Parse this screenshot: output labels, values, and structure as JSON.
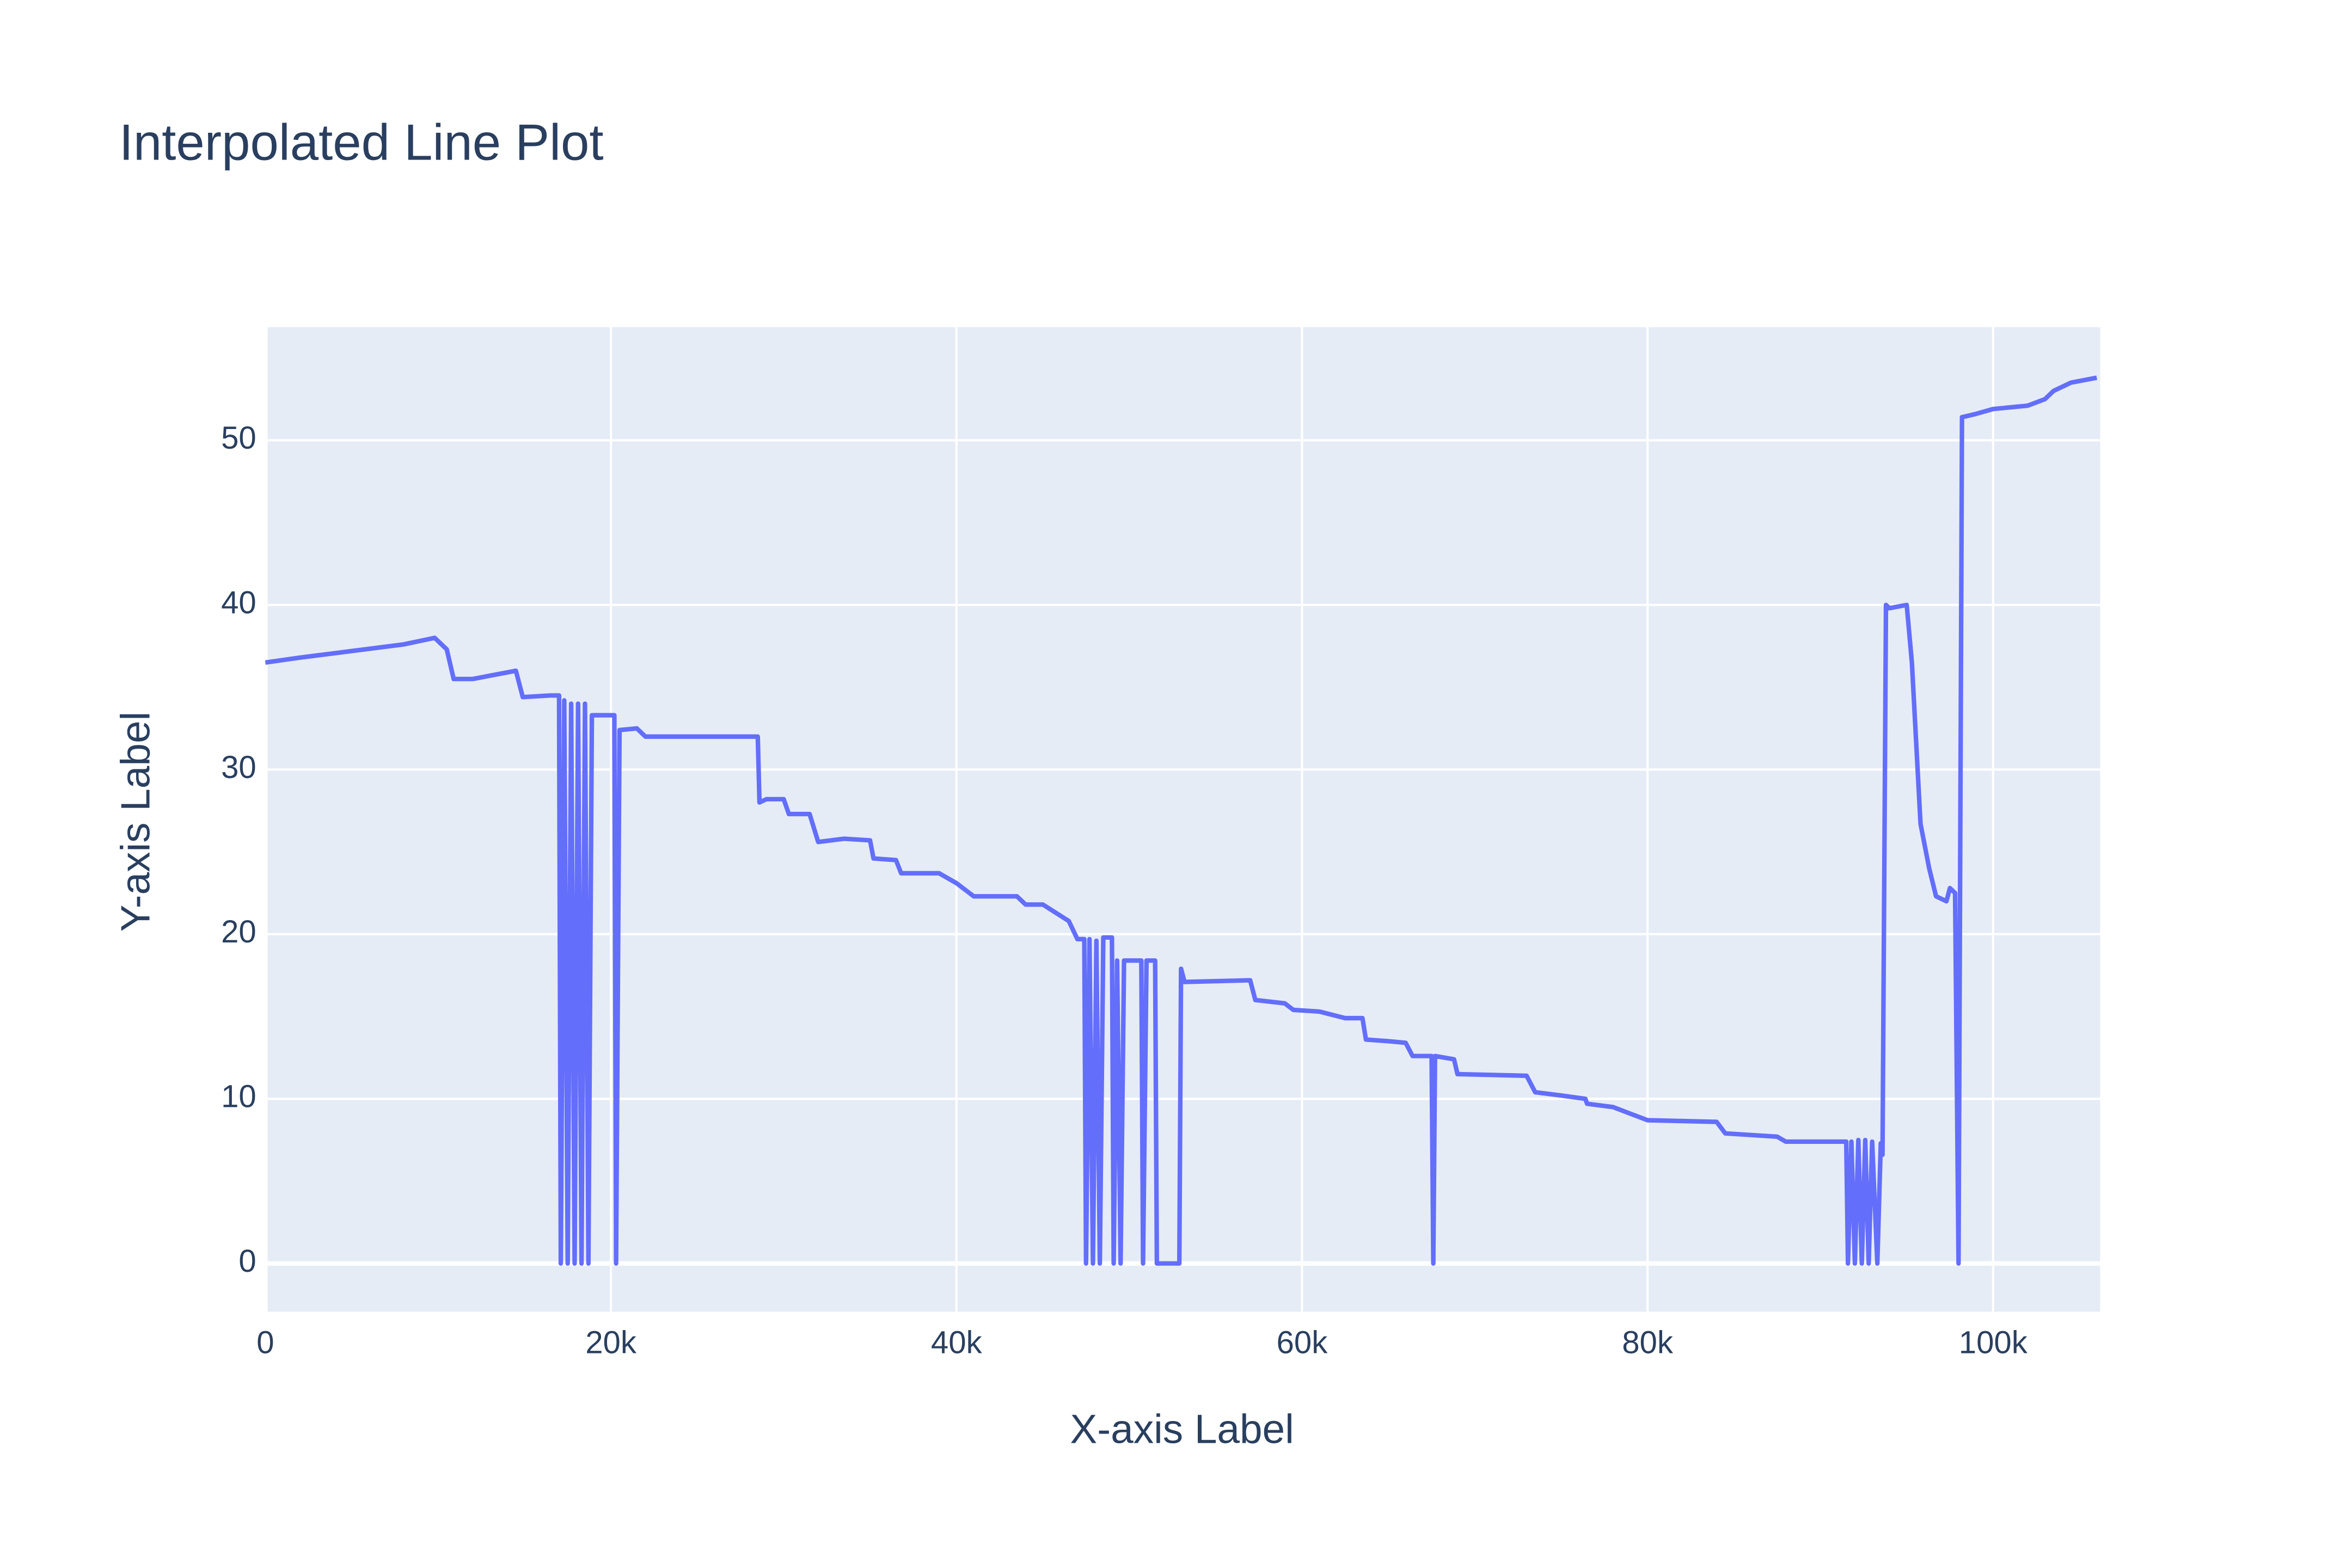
{
  "chart_data": {
    "type": "line",
    "title": "Interpolated Line Plot",
    "x_label": "X-axis Label",
    "y_label": "Y-axis Label",
    "x": [
      0,
      2000,
      5000,
      8000,
      9800,
      10500,
      10900,
      12000,
      14500,
      14900,
      16500,
      17000,
      17100,
      17300,
      17500,
      17700,
      17900,
      18100,
      18300,
      18500,
      18700,
      18900,
      20200,
      20300,
      20500,
      21500,
      22000,
      28500,
      28600,
      29000,
      30000,
      30300,
      31500,
      32000,
      33500,
      35000,
      35200,
      36500,
      36800,
      39000,
      40000,
      41000,
      43500,
      44000,
      45000,
      46500,
      47000,
      47400,
      47500,
      47700,
      47900,
      48100,
      48300,
      48500,
      49000,
      49100,
      49300,
      49500,
      49700,
      50700,
      50800,
      51000,
      51500,
      51600,
      52900,
      53000,
      53200,
      57000,
      57300,
      59000,
      59500,
      61000,
      62500,
      63500,
      63700,
      65000,
      66000,
      66400,
      67500,
      67600,
      67700,
      68800,
      69000,
      73000,
      73500,
      75000,
      76400,
      76500,
      78000,
      79000,
      80000,
      84000,
      84500,
      87500,
      88000,
      91500,
      91600,
      91800,
      92000,
      92200,
      92400,
      92600,
      92800,
      93000,
      93300,
      93500,
      93600,
      93800,
      94000,
      95000,
      95300,
      95800,
      96300,
      96700,
      97300,
      97500,
      97800,
      98000,
      98200,
      99000,
      100000,
      102000,
      103000,
      103500,
      104500,
      106000
    ],
    "series": [
      {
        "name": "y",
        "color": "#636efa",
        "values": [
          36.5,
          36.8,
          37.2,
          37.6,
          38.0,
          37.3,
          35.5,
          35.5,
          36.0,
          34.4,
          34.5,
          34.5,
          0,
          34.2,
          0,
          34,
          0,
          34,
          0,
          34,
          0,
          33.3,
          33.3,
          0,
          32.4,
          32.5,
          32.0,
          32.0,
          28.0,
          28.2,
          28.2,
          27.3,
          27.3,
          25.6,
          25.8,
          25.7,
          24.6,
          24.5,
          23.7,
          23.7,
          23.1,
          22.3,
          22.3,
          21.8,
          21.8,
          20.8,
          19.7,
          19.7,
          0,
          19.7,
          0,
          19.6,
          0,
          19.8,
          19.8,
          0,
          18.4,
          0,
          18.4,
          18.4,
          0,
          18.4,
          18.4,
          0,
          0,
          17.9,
          17.1,
          17.2,
          16.0,
          15.8,
          15.4,
          15.3,
          14.9,
          14.9,
          13.6,
          13.5,
          13.4,
          12.6,
          12.6,
          0,
          12.6,
          12.4,
          11.5,
          11.4,
          10.4,
          10.2,
          10.0,
          9.7,
          9.5,
          9.1,
          8.7,
          8.6,
          7.9,
          7.7,
          7.4,
          7.4,
          0,
          7.4,
          0,
          7.5,
          0,
          7.5,
          0,
          7.4,
          0,
          7.3,
          6.6,
          40.0,
          39.8,
          40.0,
          36.5,
          26.7,
          24.0,
          22.3,
          22.0,
          22.8,
          22.5,
          0,
          51.4,
          51.6,
          51.9,
          52.1,
          52.5,
          53.0,
          53.5,
          53.8
        ]
      }
    ],
    "xlim": [
      0,
      106200
    ],
    "ylim": [
      -2.93,
      56.87
    ],
    "xticks": [
      0,
      {
        "value": 20000,
        "label": "20k"
      },
      {
        "value": 40000,
        "label": "40k"
      },
      {
        "value": 60000,
        "label": "60k"
      },
      {
        "value": 80000,
        "label": "80k"
      },
      {
        "value": 100000,
        "label": "100k"
      }
    ],
    "yticks": [
      0,
      10,
      20,
      30,
      40,
      50
    ],
    "grid": true
  }
}
